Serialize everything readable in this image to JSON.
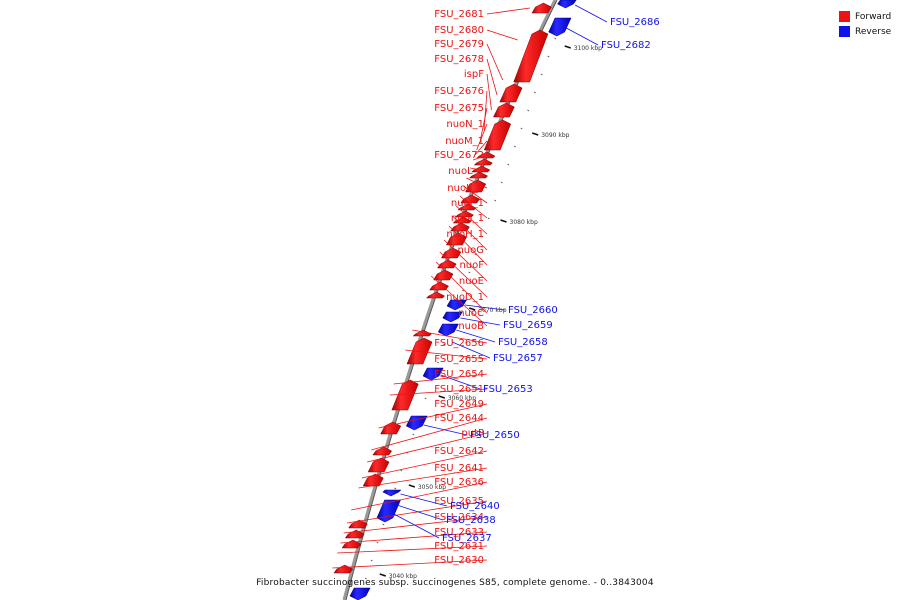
{
  "colors": {
    "forward": "#ee1111",
    "reverse": "#1111ee",
    "axis": "#888888"
  },
  "legend": [
    {
      "label": "Forward",
      "color": "#ee1111"
    },
    {
      "label": "Reverse",
      "color": "#1111ee"
    }
  ],
  "caption": "Fibrobacter succinogenes subsp. succinogenes S85, complete genome. - 0..3843004",
  "ticks": [
    "3040 kbp",
    "3050 kbp",
    "3060 kbp",
    "3070 kbp",
    "3080 kbp",
    "3090 kbp",
    "3100 kbp"
  ],
  "forward_genes": [
    "FSU_2681",
    "FSU_2680",
    "FSU_2679",
    "FSU_2678",
    "ispF",
    "FSU_2676",
    "FSU_2675",
    "nuoN_1",
    "nuoM_1",
    "FSU_2672",
    "nuoL_1",
    "nuoK_1",
    "nuoJ_1",
    "nuoI_1",
    "nuoH_1",
    "nuoG",
    "nuoF",
    "nuoE",
    "nuoD_1",
    "nuoC",
    "nuoB",
    "FSU_2656",
    "FSU_2655",
    "FSU_2654",
    "FSU_2651",
    "FSU_2649",
    "FSU_2644",
    "putP",
    "FSU_2642",
    "FSU_2641",
    "FSU_2636",
    "FSU_2635",
    "FSU_2634",
    "FSU_2633",
    "FSU_2631",
    "FSU_2630"
  ],
  "reverse_genes": [
    "FSU_2686",
    "FSU_2682",
    "FSU_2660",
    "FSU_2659",
    "FSU_2658",
    "FSU_2657",
    "FSU_2653",
    "FSU_2650",
    "FSU_2640",
    "FSU_2638",
    "FSU_2637"
  ]
}
